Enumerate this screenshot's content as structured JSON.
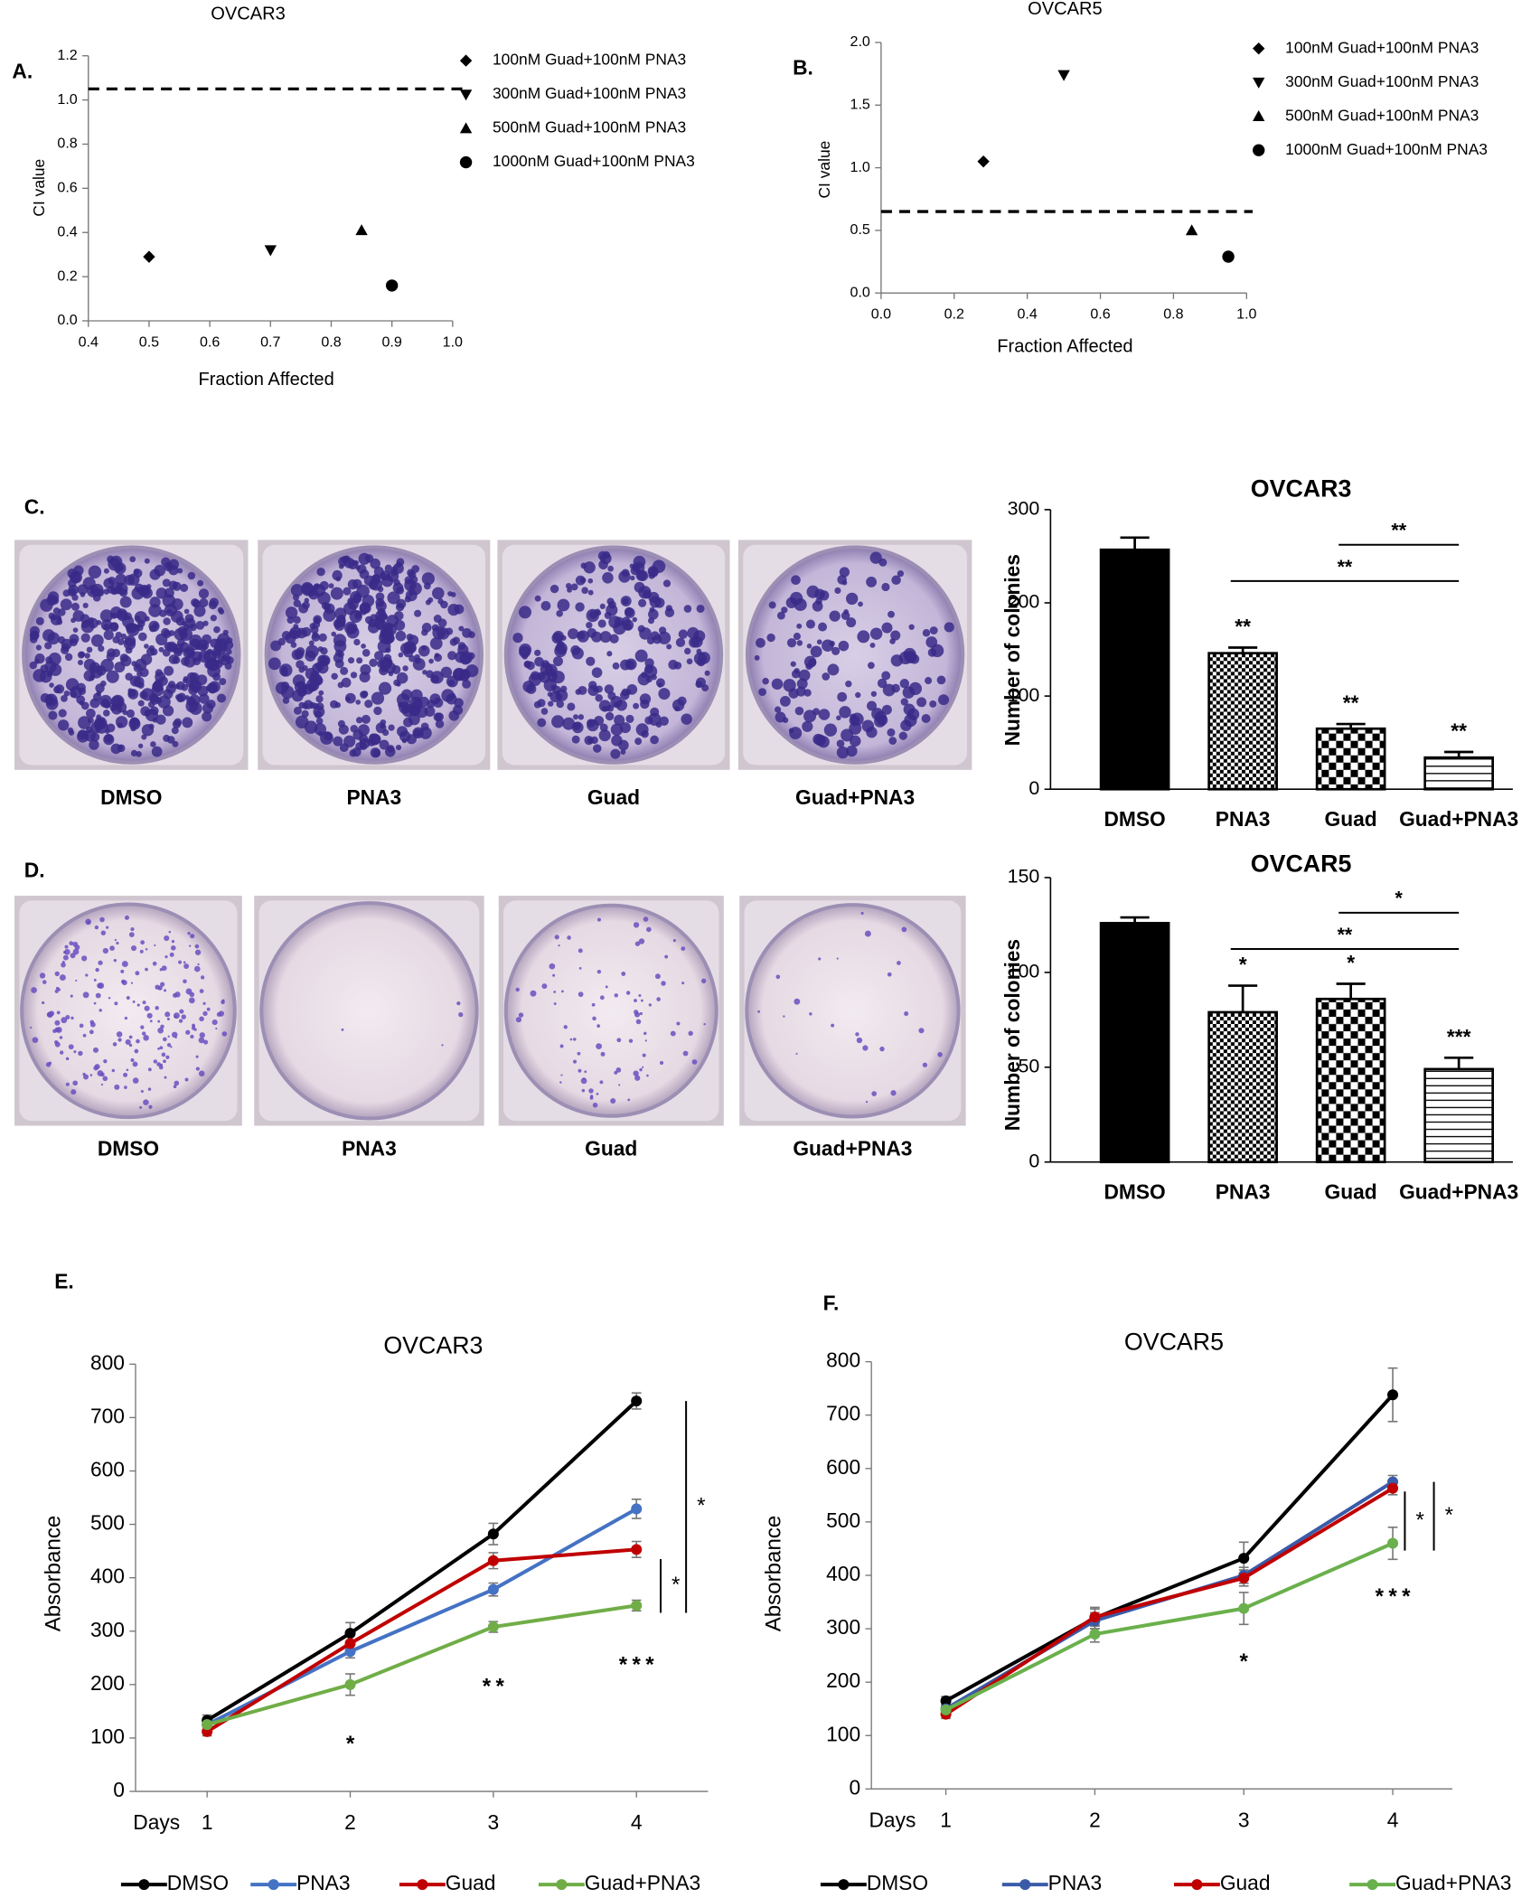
{
  "panel_labels": [
    "A.",
    "B.",
    "C.",
    "D.",
    "E.",
    "F."
  ],
  "chart_data": [
    {
      "type": "scatter",
      "title": "OVCAR3",
      "xlabel": "Fraction Affected",
      "ylabel": "CI value",
      "xlim": [
        0.4,
        1
      ],
      "xticks": [
        0.4,
        0.5,
        0.6,
        0.7,
        0.8,
        0.9,
        {
          "value": 1,
          "label": "1.0"
        }
      ],
      "ylim": [
        0,
        1.2
      ],
      "yticks": [
        {
          "value": 0,
          "label": "0.0"
        },
        0.2,
        0.4,
        0.6,
        0.8,
        {
          "value": 1,
          "label": "1.0"
        },
        1.2
      ],
      "reference_line": 1.05,
      "series": [
        {
          "name": "100nM Guad+100nM PNA3",
          "marker": "diamond",
          "color": "#000000",
          "x": [
            0.5
          ],
          "values": [
            0.29
          ]
        },
        {
          "name": "300nM Guad+100nM PNA3",
          "marker": "triangle-down",
          "color": "#000000",
          "x": [
            0.7
          ],
          "values": [
            0.32
          ]
        },
        {
          "name": "500nM Guad+100nM PNA3",
          "marker": "triangle-up",
          "color": "#000000",
          "x": [
            0.85
          ],
          "values": [
            0.41
          ]
        },
        {
          "name": "1000nM Guad+100nM PNA3",
          "marker": "circle",
          "color": "#000000",
          "x": [
            0.9
          ],
          "values": [
            0.16
          ]
        }
      ]
    },
    {
      "type": "scatter",
      "title": "OVCAR5",
      "xlabel": "Fraction Affected",
      "ylabel": "CI value",
      "xlim": [
        0,
        1
      ],
      "xticks": [
        {
          "value": 0,
          "label": "0.0"
        },
        0.2,
        0.4,
        0.6,
        0.8,
        {
          "value": 1,
          "label": "1.0"
        }
      ],
      "ylim": [
        0,
        2
      ],
      "yticks": [
        {
          "value": 0,
          "label": "0.0"
        },
        0.5,
        {
          "value": 1,
          "label": "1.0"
        },
        1.5,
        {
          "value": 2,
          "label": "2.0"
        }
      ],
      "reference_line": 0.65,
      "series": [
        {
          "name": "100nM Guad+100nM PNA3",
          "marker": "diamond",
          "color": "#000000",
          "x": [
            0.28
          ],
          "values": [
            1.05
          ]
        },
        {
          "name": "300nM Guad+100nM PNA3",
          "marker": "triangle-down",
          "color": "#000000",
          "x": [
            0.5
          ],
          "values": [
            1.74
          ]
        },
        {
          "name": "500nM Guad+100nM PNA3",
          "marker": "triangle-up",
          "color": "#000000",
          "x": [
            0.85
          ],
          "values": [
            0.5
          ]
        },
        {
          "name": "1000nM Guad+100nM PNA3",
          "marker": "circle",
          "color": "#000000",
          "x": [
            0.95
          ],
          "values": [
            0.29
          ]
        }
      ]
    },
    {
      "type": "bar",
      "title": "OVCAR3",
      "ylabel": "Number of colonies",
      "categories": [
        "DMSO",
        "PNA3",
        "Guad",
        "Guad+PNA3"
      ],
      "values": [
        257,
        146,
        65,
        34
      ],
      "errors": [
        13,
        6,
        5,
        6
      ],
      "patterns": [
        "solid",
        "checker-small",
        "checker-large",
        "hlines"
      ],
      "significance": [
        null,
        "**",
        "**",
        "**"
      ],
      "comparisons": [
        {
          "from": 1,
          "to": 3,
          "label": "**"
        },
        {
          "from": 2,
          "to": 3,
          "label": "**"
        }
      ],
      "ylim": [
        0,
        300
      ],
      "yticks": [
        0,
        100,
        200,
        300
      ]
    },
    {
      "type": "bar",
      "title": "OVCAR5",
      "ylabel": "Number of colonies",
      "categories": [
        "DMSO",
        "PNA3",
        "Guad",
        "Guad+PNA3"
      ],
      "values": [
        126,
        79,
        86,
        49
      ],
      "errors": [
        3,
        14,
        8,
        6
      ],
      "patterns": [
        "solid",
        "checker-small",
        "checker-large",
        "hlines"
      ],
      "significance": [
        null,
        "*",
        "*",
        "***"
      ],
      "comparisons": [
        {
          "from": 1,
          "to": 3,
          "label": "**"
        },
        {
          "from": 2,
          "to": 3,
          "label": "*"
        }
      ],
      "ylim": [
        0,
        150
      ],
      "yticks": [
        0,
        50,
        100,
        150
      ]
    },
    {
      "type": "line",
      "title": "OVCAR3",
      "xlabel": "Days",
      "ylabel": "Absorbance",
      "x": [
        1,
        2,
        3,
        4
      ],
      "xlim": [
        0.5,
        4.5
      ],
      "xticks": [
        1,
        2,
        3,
        4
      ],
      "ylim": [
        0,
        800
      ],
      "yticks": [
        0,
        100,
        200,
        300,
        400,
        500,
        600,
        700,
        800
      ],
      "series": [
        {
          "name": "DMSO",
          "color": "#000000",
          "values": [
            133,
            296,
            482,
            731
          ],
          "errors": [
            10,
            20,
            20,
            15
          ]
        },
        {
          "name": "PNA3",
          "color": "#4472c4",
          "values": [
            125,
            262,
            378,
            529
          ],
          "errors": [
            10,
            12,
            12,
            18
          ]
        },
        {
          "name": "Guad",
          "color": "#c00000",
          "values": [
            112,
            277,
            432,
            453
          ],
          "errors": [
            8,
            15,
            15,
            15
          ]
        },
        {
          "name": "Guad+PNA3",
          "color": "#70ad47",
          "values": [
            125,
            200,
            308,
            348
          ],
          "errors": [
            10,
            20,
            10,
            10
          ]
        }
      ],
      "day_stars": [
        null,
        [
          {
            "text": "*",
            "series": 3
          }
        ],
        [
          {
            "text": "*",
            "series": 3
          },
          {
            "text": "*",
            "series": 1
          }
        ],
        [
          {
            "text": "*",
            "series": 3
          },
          {
            "text": "*",
            "series": 1
          },
          {
            "text": "*",
            "series": 2
          }
        ]
      ],
      "brackets": [
        {
          "from": 2,
          "to": 3,
          "label": "*"
        },
        {
          "from": 0,
          "to": 3,
          "label": "*"
        }
      ]
    },
    {
      "type": "line",
      "title": "OVCAR5",
      "xlabel": "Days",
      "ylabel": "Absorbance",
      "x": [
        1,
        2,
        3,
        4
      ],
      "xlim": [
        0.5,
        4.4
      ],
      "xticks": [
        1,
        2,
        3,
        4
      ],
      "ylim": [
        0,
        800
      ],
      "yticks": [
        0,
        100,
        200,
        300,
        400,
        500,
        600,
        700,
        800
      ],
      "series": [
        {
          "name": "DMSO",
          "color": "#000000",
          "values": [
            165,
            320,
            432,
            738
          ],
          "errors": [
            8,
            20,
            30,
            50
          ]
        },
        {
          "name": "PNA3",
          "color": "#3a5ba8",
          "values": [
            150,
            315,
            400,
            575
          ],
          "errors": [
            8,
            15,
            15,
            12
          ]
        },
        {
          "name": "Guad",
          "color": "#c00000",
          "values": [
            140,
            322,
            395,
            563
          ],
          "errors": [
            8,
            15,
            15,
            12
          ]
        },
        {
          "name": "Guad+PNA3",
          "color": "#6ab04c",
          "values": [
            148,
            290,
            338,
            460
          ],
          "errors": [
            8,
            15,
            30,
            30
          ]
        }
      ],
      "day_stars": [
        null,
        null,
        [
          {
            "text": "*",
            "series": 3
          }
        ],
        [
          {
            "text": "*",
            "series": 3
          },
          {
            "text": "*",
            "series": 2
          },
          {
            "text": "*",
            "series": 1
          }
        ]
      ],
      "brackets": [
        {
          "from": 1,
          "to": 3,
          "label": "*"
        },
        {
          "from": 1,
          "to": 3,
          "label": "*"
        }
      ]
    }
  ]
}
